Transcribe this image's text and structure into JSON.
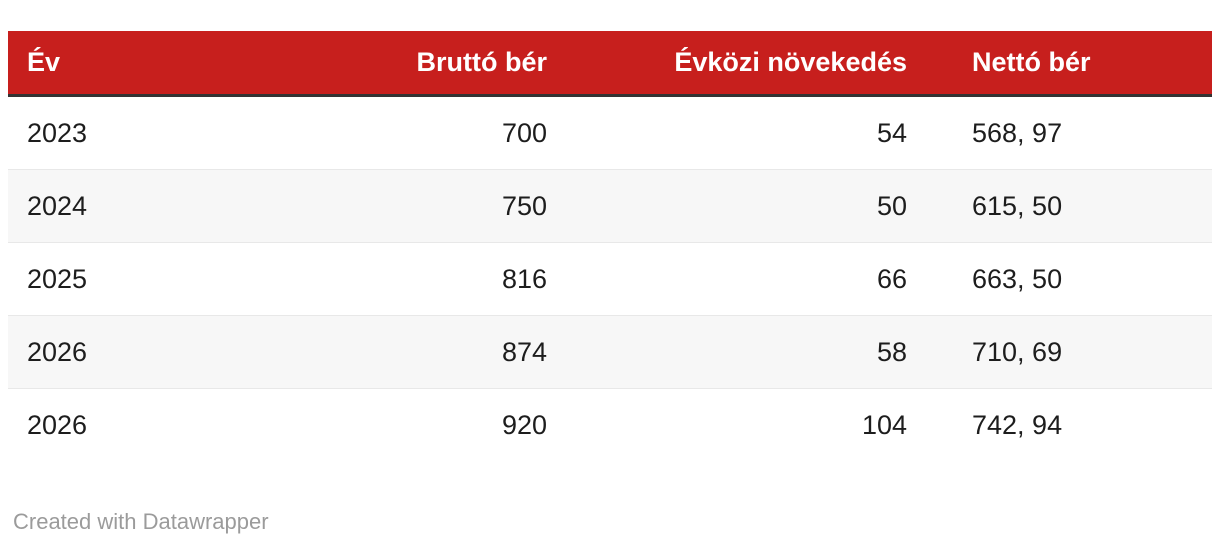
{
  "colors": {
    "page_bg": "#ffffff",
    "header_bg": "#c71f1d",
    "header_text": "#ffffff",
    "header_rule": "#333333",
    "row_bg": "#ffffff",
    "row_alt_bg": "#f7f7f7",
    "row_divider": "#e8e8e8",
    "body_text": "#1d1d1d",
    "footer_text": "#9b9b9b"
  },
  "table": {
    "columns": [
      {
        "label": "Év",
        "align": "left"
      },
      {
        "label": "Bruttó bér",
        "align": "right"
      },
      {
        "label": "Évközi növekedés",
        "align": "right"
      },
      {
        "label": "Nettó bér",
        "align": "left"
      }
    ],
    "rows": [
      [
        "2023",
        "700",
        "54",
        "568, 97"
      ],
      [
        "2024",
        "750",
        "50",
        "615, 50"
      ],
      [
        "2025",
        "816",
        "66",
        "663, 50"
      ],
      [
        "2026",
        "874",
        "58",
        "710, 69"
      ],
      [
        "2026",
        "920",
        "104",
        "742, 94"
      ]
    ]
  },
  "footer": {
    "attribution": "Created with Datawrapper"
  },
  "chart_data": {
    "type": "table",
    "title": "",
    "columns": [
      "Év",
      "Bruttó bér",
      "Évközi növekedés",
      "Nettó bér"
    ],
    "column_alignment": [
      "left",
      "right",
      "right",
      "left"
    ],
    "rows": [
      {
        "ev": "2023",
        "brutto_ber": 700,
        "evkozi_novekedes": 54,
        "netto_ber": "568, 97"
      },
      {
        "ev": "2024",
        "brutto_ber": 750,
        "evkozi_novekedes": 50,
        "netto_ber": "615, 50"
      },
      {
        "ev": "2025",
        "brutto_ber": 816,
        "evkozi_novekedes": 66,
        "netto_ber": "663, 50"
      },
      {
        "ev": "2026",
        "brutto_ber": 874,
        "evkozi_novekedes": 58,
        "netto_ber": "710, 69"
      },
      {
        "ev": "2026",
        "brutto_ber": 920,
        "evkozi_novekedes": 104,
        "netto_ber": "742, 94"
      }
    ],
    "zebra_striping": true,
    "attribution": "Created with Datawrapper"
  }
}
